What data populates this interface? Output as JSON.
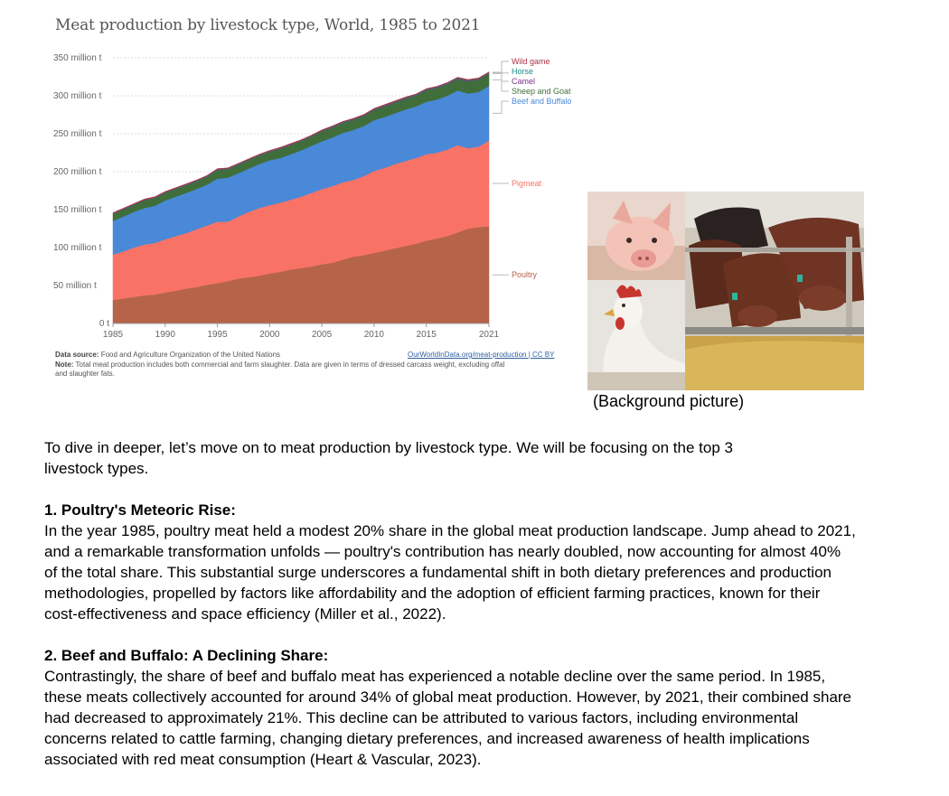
{
  "chart_data": {
    "type": "area",
    "title": "Meat production by livestock type, World, 1985 to 2021",
    "x": [
      1985,
      1986,
      1987,
      1988,
      1989,
      1990,
      1991,
      1992,
      1993,
      1994,
      1995,
      1996,
      1997,
      1998,
      1999,
      2000,
      2001,
      2002,
      2003,
      2004,
      2005,
      2006,
      2007,
      2008,
      2009,
      2010,
      2011,
      2012,
      2013,
      2014,
      2015,
      2016,
      2017,
      2018,
      2019,
      2020,
      2021
    ],
    "xticks": [
      "1985",
      "1990",
      "1995",
      "2000",
      "2005",
      "2010",
      "2015",
      "2021"
    ],
    "yticks": [
      "0 t",
      "50 million t",
      "100 million t",
      "150 million t",
      "200 million t",
      "250 million t",
      "300 million t",
      "350 million t"
    ],
    "ylim": [
      0,
      350
    ],
    "stacked": true,
    "series": [
      {
        "name": "Poultry",
        "color": "#b5644a",
        "values": [
          31,
          33,
          35,
          37,
          38,
          41,
          43,
          46,
          48,
          51,
          53,
          56,
          59,
          61,
          63,
          66,
          68,
          71,
          73,
          75,
          78,
          80,
          84,
          88,
          90,
          93,
          96,
          99,
          102,
          105,
          109,
          112,
          115,
          120,
          125,
          127,
          128
        ]
      },
      {
        "name": "Pigmeat",
        "color": "#f87366",
        "values": [
          60,
          62,
          65,
          67,
          68,
          70,
          72,
          73,
          76,
          78,
          81,
          78,
          82,
          86,
          89,
          90,
          91,
          92,
          94,
          97,
          99,
          101,
          102,
          101,
          104,
          108,
          109,
          111,
          112,
          113,
          114,
          113,
          114,
          115,
          106,
          106,
          113
        ]
      },
      {
        "name": "Beef and Buffalo",
        "color": "#4a88d8",
        "values": [
          44,
          46,
          47,
          48,
          49,
          51,
          52,
          53,
          53,
          54,
          57,
          58,
          57,
          57,
          58,
          59,
          59,
          60,
          61,
          62,
          63,
          64,
          65,
          66,
          66,
          67,
          67,
          67,
          68,
          68,
          69,
          70,
          71,
          72,
          72,
          72,
          72
        ]
      },
      {
        "name": "Sheep and Goat",
        "color": "#3f6e3a",
        "values": [
          9,
          9,
          9,
          10,
          10,
          10,
          10,
          10,
          10,
          10,
          11,
          11,
          11,
          11,
          11,
          11,
          12,
          12,
          12,
          12,
          13,
          13,
          13,
          13,
          13,
          13,
          14,
          14,
          14,
          14,
          15,
          15,
          15,
          15,
          16,
          16,
          16
        ]
      },
      {
        "name": "Camel",
        "color": "#7a2f8a",
        "values": [
          0.3,
          0.3,
          0.3,
          0.3,
          0.3,
          0.3,
          0.3,
          0.3,
          0.3,
          0.3,
          0.3,
          0.3,
          0.3,
          0.3,
          0.3,
          0.3,
          0.3,
          0.3,
          0.3,
          0.4,
          0.4,
          0.4,
          0.4,
          0.4,
          0.4,
          0.5,
          0.5,
          0.5,
          0.5,
          0.5,
          0.6,
          0.6,
          0.6,
          0.6,
          0.6,
          0.6,
          0.6
        ]
      },
      {
        "name": "Horse",
        "color": "#1a8a86",
        "values": [
          0.6,
          0.6,
          0.6,
          0.6,
          0.6,
          0.6,
          0.6,
          0.6,
          0.7,
          0.7,
          0.7,
          0.7,
          0.7,
          0.7,
          0.7,
          0.7,
          0.7,
          0.7,
          0.7,
          0.7,
          0.7,
          0.8,
          0.8,
          0.8,
          0.8,
          0.8,
          0.8,
          0.8,
          0.8,
          0.8,
          0.8,
          0.8,
          0.8,
          0.8,
          0.8,
          0.8,
          0.8
        ]
      },
      {
        "name": "Wild game",
        "color": "#a83242",
        "values": [
          1.0,
          1.0,
          1.0,
          1.0,
          1.0,
          1.0,
          1.0,
          1.0,
          1.0,
          1.0,
          1.0,
          1.0,
          1.0,
          1.0,
          1.0,
          1.0,
          1.0,
          1.0,
          1.0,
          1.0,
          1.0,
          1.0,
          1.0,
          1.0,
          1.0,
          1.0,
          1.0,
          1.0,
          1.0,
          1.0,
          1.0,
          1.0,
          1.0,
          1.0,
          1.0,
          1.0,
          1.0
        ]
      }
    ],
    "data_source_label": "Data source:",
    "data_source": "Food and Agriculture Organization of the United Nations",
    "source_link": "OurWorldInData.org/meat-production | CC BY",
    "note_label": "Note:",
    "note_line1": "Total meat production includes both commercial and farm slaughter. Data are given in terms of dressed carcass weight, excluding offal",
    "note_line2": "and slaughter fats."
  },
  "colors": {
    "gridline": "#dddddd",
    "axis_text": "#666666",
    "label_connector": "#bbbbbb"
  },
  "image": {
    "caption": "(Background picture)",
    "panels": [
      "pig-photo",
      "chicken-photo",
      "cattle-photo"
    ]
  },
  "article": {
    "intro_line1": "To dive in deeper, let’s move on to meat production by livestock type. We will be focusing on the top 3",
    "intro_line2": "livestock types.",
    "section1": {
      "heading": "1. Poultry's Meteoric Rise:",
      "lines": [
        "In the year 1985, poultry meat held a modest 20% share in the global meat production landscape. Jump ahead to 2021,",
        "and a remarkable transformation unfolds — poultry's contribution has nearly doubled, now accounting for almost 40%",
        "of the total share. This substantial surge underscores a fundamental shift in both dietary preferences and production",
        "methodologies, propelled by factors like affordability and the adoption of efficient farming practices, known for their",
        "cost-effectiveness and space efficiency (Miller et al., 2022)."
      ]
    },
    "section2": {
      "heading": "2. Beef and Buffalo: A Declining Share:",
      "lines": [
        "Contrastingly, the share of beef and buffalo meat has experienced a notable decline over the same period. In 1985,",
        "these meats collectively accounted for around 34% of global meat production. However, by 2021, their combined share",
        "had decreased to approximately 21%. This decline can be attributed to various factors, including environmental",
        "concerns related to cattle farming, changing dietary preferences, and increased awareness of health implications",
        "associated with red meat consumption (Heart & Vascular, 2023)."
      ]
    }
  }
}
